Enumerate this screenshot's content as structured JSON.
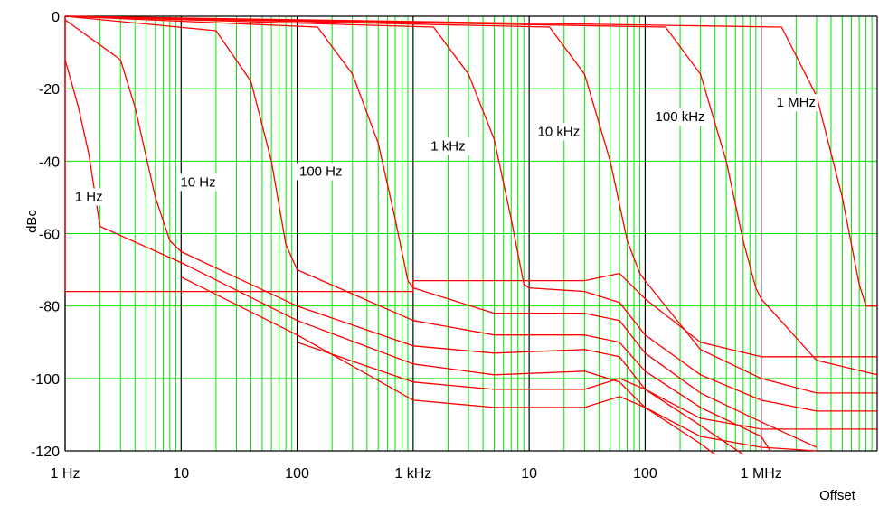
{
  "chart_data": {
    "type": "line",
    "xlabel": "Offset",
    "ylabel": "dBc",
    "x_scale": "log",
    "xlim_hz": [
      1,
      10000000
    ],
    "ylim": [
      -120,
      0
    ],
    "grid": true,
    "colors": {
      "grid": "#00e600",
      "decade": "#000000",
      "series": "#ff0000"
    },
    "x_tick_labels": [
      "1 Hz",
      "10",
      "100",
      "1 kHz",
      "10",
      "100",
      "1 MHz"
    ],
    "y_tick_labels": [
      "0",
      "-20",
      "-40",
      "-60",
      "-80",
      "-100",
      "-120"
    ],
    "y_tick_values": [
      0,
      -20,
      -40,
      -60,
      -80,
      -100,
      -120
    ],
    "series": [
      {
        "name": "1 Hz",
        "points": [
          [
            1,
            -12
          ],
          [
            1.3,
            -25
          ],
          [
            1.6,
            -38
          ],
          [
            2,
            -58
          ],
          [
            10,
            -68
          ],
          [
            100,
            -84
          ],
          [
            1000,
            -96
          ],
          [
            5000,
            -99
          ],
          [
            30000,
            -98
          ],
          [
            60000,
            -101
          ],
          [
            100000,
            -108
          ],
          [
            300000,
            -118
          ],
          [
            400000,
            -121
          ]
        ]
      },
      {
        "name": "10 Hz",
        "points": [
          [
            1,
            -1
          ],
          [
            3,
            -12
          ],
          [
            4,
            -25
          ],
          [
            6,
            -50
          ],
          [
            8,
            -62
          ],
          [
            10,
            -65
          ],
          [
            100,
            -80
          ],
          [
            1000,
            -91
          ],
          [
            5000,
            -93
          ],
          [
            30000,
            -92
          ],
          [
            60000,
            -94
          ],
          [
            100000,
            -103
          ],
          [
            300000,
            -113
          ],
          [
            700000,
            -121
          ]
        ]
      },
      {
        "name": "100 Hz",
        "points": [
          [
            1,
            0
          ],
          [
            20,
            -4
          ],
          [
            40,
            -18
          ],
          [
            60,
            -40
          ],
          [
            80,
            -63
          ],
          [
            100,
            -70
          ],
          [
            1000,
            -84
          ],
          [
            5000,
            -88
          ],
          [
            30000,
            -88
          ],
          [
            60000,
            -90
          ],
          [
            100000,
            -98
          ],
          [
            300000,
            -108
          ],
          [
            1000000,
            -116
          ],
          [
            1200000,
            -120
          ]
        ]
      },
      {
        "name": "1 kHz",
        "points": [
          [
            1,
            0
          ],
          [
            150,
            -3
          ],
          [
            300,
            -16
          ],
          [
            500,
            -35
          ],
          [
            700,
            -56
          ],
          [
            900,
            -73
          ],
          [
            1000,
            -75
          ],
          [
            5000,
            -82
          ],
          [
            30000,
            -82
          ],
          [
            60000,
            -84
          ],
          [
            100000,
            -93
          ],
          [
            300000,
            -104
          ],
          [
            1000000,
            -112
          ],
          [
            3000000,
            -119
          ]
        ]
      },
      {
        "name": "10 kHz",
        "points": [
          [
            1,
            0
          ],
          [
            1500,
            -3
          ],
          [
            3000,
            -16
          ],
          [
            5000,
            -34
          ],
          [
            7000,
            -56
          ],
          [
            9000,
            -74
          ],
          [
            10000,
            -75
          ],
          [
            30000,
            -76
          ],
          [
            60000,
            -79
          ],
          [
            100000,
            -88
          ],
          [
            300000,
            -99
          ],
          [
            1000000,
            -106
          ],
          [
            3000000,
            -109
          ],
          [
            10000000,
            -109
          ]
        ]
      },
      {
        "name": "100 kHz",
        "points": [
          [
            1,
            0
          ],
          [
            15000,
            -3
          ],
          [
            30000,
            -16
          ],
          [
            50000,
            -40
          ],
          [
            70000,
            -62
          ],
          [
            90000,
            -71
          ],
          [
            100000,
            -73
          ],
          [
            300000,
            -92
          ],
          [
            1000000,
            -100
          ],
          [
            3000000,
            -104
          ],
          [
            10000000,
            -104
          ]
        ]
      },
      {
        "name": "1 MHz",
        "points": [
          [
            1,
            0
          ],
          [
            150000,
            -3
          ],
          [
            300000,
            -16
          ],
          [
            500000,
            -40
          ],
          [
            700000,
            -62
          ],
          [
            900000,
            -75
          ],
          [
            1000000,
            -78
          ],
          [
            3000000,
            -95
          ],
          [
            10000000,
            -99
          ]
        ]
      },
      {
        "name": "",
        "points": [
          [
            1,
            0
          ],
          [
            1500000,
            -3
          ],
          [
            3000000,
            -22
          ],
          [
            5000000,
            -50
          ],
          [
            7000000,
            -74
          ],
          [
            8000000,
            -80
          ],
          [
            10000000,
            -80
          ]
        ]
      },
      {
        "name": "",
        "points": [
          [
            1,
            0
          ],
          [
            1,
            -76
          ],
          [
            10,
            -76
          ],
          [
            1000,
            -76
          ],
          [
            1000,
            -73
          ],
          [
            30000,
            -73
          ],
          [
            60000,
            -71
          ],
          [
            100000,
            -78
          ],
          [
            300000,
            -90
          ],
          [
            1000000,
            -94
          ],
          [
            10000000,
            -94
          ]
        ]
      },
      {
        "name": "",
        "points": [
          [
            100,
            -90
          ],
          [
            1000,
            -101
          ],
          [
            5000,
            -103
          ],
          [
            30000,
            -103
          ],
          [
            60000,
            -100
          ],
          [
            100000,
            -103
          ],
          [
            300000,
            -111
          ],
          [
            1000000,
            -114
          ],
          [
            10000000,
            -114
          ]
        ]
      },
      {
        "name": "",
        "points": [
          [
            10,
            -72
          ],
          [
            100,
            -88
          ],
          [
            1000,
            -106
          ],
          [
            5000,
            -108
          ],
          [
            30000,
            -108
          ],
          [
            60000,
            -105
          ],
          [
            100000,
            -108
          ],
          [
            300000,
            -116
          ],
          [
            1000000,
            -119
          ],
          [
            3000000,
            -120
          ]
        ]
      }
    ],
    "annotations": [
      "1 Hz",
      "10 Hz",
      "100 Hz",
      "1 kHz",
      "10 kHz",
      "100 kHz",
      "1 MHz"
    ]
  }
}
